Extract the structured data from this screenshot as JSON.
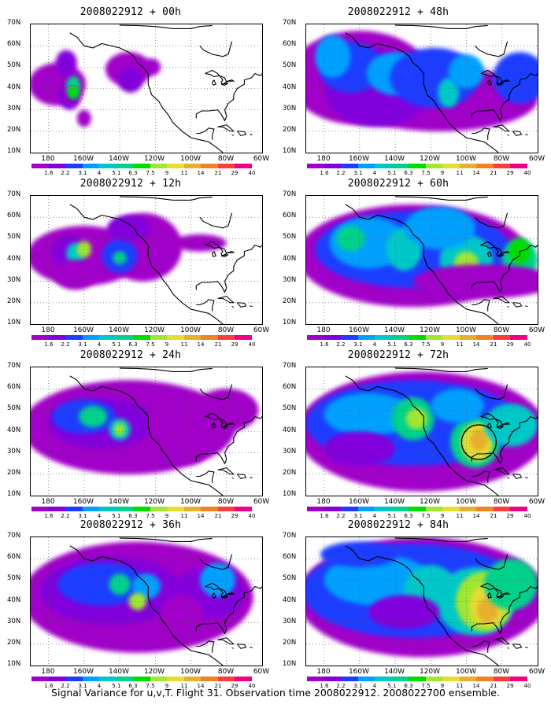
{
  "panels": [
    {
      "title": "2008022912 + 00h"
    },
    {
      "title": "2008022912 + 48h"
    },
    {
      "title": "2008022912 + 12h"
    },
    {
      "title": "2008022912 + 60h"
    },
    {
      "title": "2008022912 + 24h"
    },
    {
      "title": "2008022912 + 72h"
    },
    {
      "title": "2008022912 + 36h"
    },
    {
      "title": "2008022912 + 84h"
    }
  ],
  "map": {
    "lat_labels": [
      "70N",
      "60N",
      "50N",
      "40N",
      "30N",
      "20N",
      "10N"
    ],
    "lon_labels": [
      "180",
      "160W",
      "140W",
      "120W",
      "100W",
      "80W",
      "60W"
    ]
  },
  "colorbar": {
    "labels": [
      "1.6",
      "2.2",
      "3.1",
      "4",
      "5.1",
      "6.3",
      "7.5",
      "9",
      "11",
      "14",
      "21",
      "29",
      "40"
    ],
    "colors": [
      "#a000c8",
      "#8200dc",
      "#1e3cff",
      "#00a0ff",
      "#00c8c8",
      "#00d28c",
      "#00dc00",
      "#a0e632",
      "#e6dc32",
      "#e6af2d",
      "#f08228",
      "#fa3c3c",
      "#f00082"
    ]
  },
  "caption": "Signal Variance for u,v,T. Flight 31. Observation time 2008022912. 2008022700 ensemble."
}
